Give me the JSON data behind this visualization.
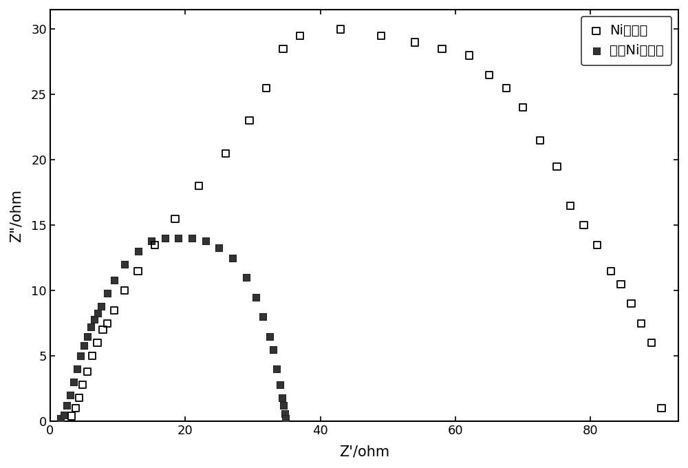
{
  "ni_x": [
    3.2,
    3.8,
    4.3,
    4.8,
    5.5,
    6.2,
    7.0,
    7.8,
    8.5,
    9.5,
    11.0,
    13.0,
    15.5,
    18.5,
    22.0,
    26.0,
    29.5,
    32.0,
    34.5,
    37.0,
    43.0,
    49.0,
    54.0,
    58.0,
    62.0,
    65.0,
    67.5,
    70.0,
    72.5,
    75.0,
    77.0,
    79.0,
    81.0,
    83.0,
    84.5,
    86.0,
    87.5,
    89.0,
    90.5
  ],
  "ni_y": [
    0.4,
    1.0,
    1.8,
    2.8,
    3.8,
    5.0,
    6.0,
    7.0,
    7.5,
    8.5,
    10.0,
    11.5,
    13.5,
    15.5,
    18.0,
    20.5,
    23.0,
    25.5,
    28.5,
    29.5,
    30.0,
    29.5,
    29.0,
    28.5,
    28.0,
    26.5,
    25.5,
    24.0,
    21.5,
    19.5,
    16.5,
    15.0,
    13.5,
    11.5,
    10.5,
    9.0,
    7.5,
    6.0,
    1.0
  ],
  "dep_ni_x": [
    1.5,
    2.0,
    2.5,
    3.0,
    3.5,
    4.0,
    4.5,
    5.0,
    5.5,
    6.0,
    6.5,
    7.0,
    7.5,
    8.5,
    9.5,
    11.0,
    13.0,
    15.0,
    17.0,
    19.0,
    21.0,
    23.0,
    25.0,
    27.0,
    29.0,
    30.5,
    31.5,
    32.5,
    33.0,
    33.5,
    34.0,
    34.3,
    34.5,
    34.7,
    34.8
  ],
  "dep_ni_y": [
    0.2,
    0.5,
    1.2,
    2.0,
    3.0,
    4.0,
    5.0,
    5.8,
    6.5,
    7.2,
    7.8,
    8.3,
    8.8,
    9.8,
    10.8,
    12.0,
    13.0,
    13.8,
    14.0,
    14.0,
    14.0,
    13.8,
    13.3,
    12.5,
    11.0,
    9.5,
    8.0,
    6.5,
    5.5,
    4.0,
    2.8,
    1.8,
    1.2,
    0.6,
    0.2
  ],
  "xlabel": "Z'/ohm",
  "ylabel": "Z\"/ohm",
  "xlim": [
    0,
    93
  ],
  "ylim": [
    0,
    31.5
  ],
  "xticks": [
    0,
    20,
    40,
    60,
    80
  ],
  "yticks": [
    0,
    5,
    10,
    15,
    20,
    25,
    30
  ],
  "legend_label1": "Ni催化剂",
  "legend_label2": "沉积Ni催化剂",
  "marker_open_size": 55,
  "marker_filled_size": 55,
  "background_color": "#ffffff",
  "font_size": 15,
  "tick_font_size": 13
}
